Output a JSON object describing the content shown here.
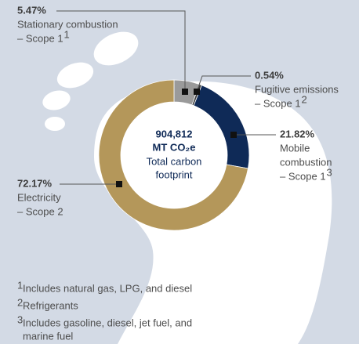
{
  "chart_data": {
    "type": "donut",
    "center": {
      "total": "904,812",
      "unit": "MT CO₂e",
      "caption_1": "Total carbon",
      "caption_2": "footprint"
    },
    "categories": [
      {
        "line_1": "Stationary combustion",
        "line_2": "– Scope 1",
        "sup": "1"
      },
      {
        "line_1": "Fugitive emissions",
        "line_2": "– Scope 1",
        "sup": "2"
      },
      {
        "line_1": "Mobile",
        "line_2": "combustion",
        "line_3": "– Scope 1",
        "sup": "3"
      },
      {
        "line_1": "Electricity",
        "line_2": "– Scope 2"
      }
    ],
    "values": [
      5.47,
      0.54,
      21.82,
      72.17
    ],
    "value_labels": [
      "5.47%",
      "0.54%",
      "21.82%",
      "72.17%"
    ],
    "colors": [
      "#9a9a9a",
      "#3c3c3c",
      "#0f2a57",
      "#b4975a"
    ],
    "footnotes": [
      {
        "mark": "1",
        "text": "Includes natural gas, LPG, and diesel"
      },
      {
        "mark": "2",
        "text": "Refrigerants"
      },
      {
        "mark": "3",
        "text": "Includes gasoline, diesel, jet fuel, and",
        "text_2": "marine fuel"
      }
    ]
  }
}
